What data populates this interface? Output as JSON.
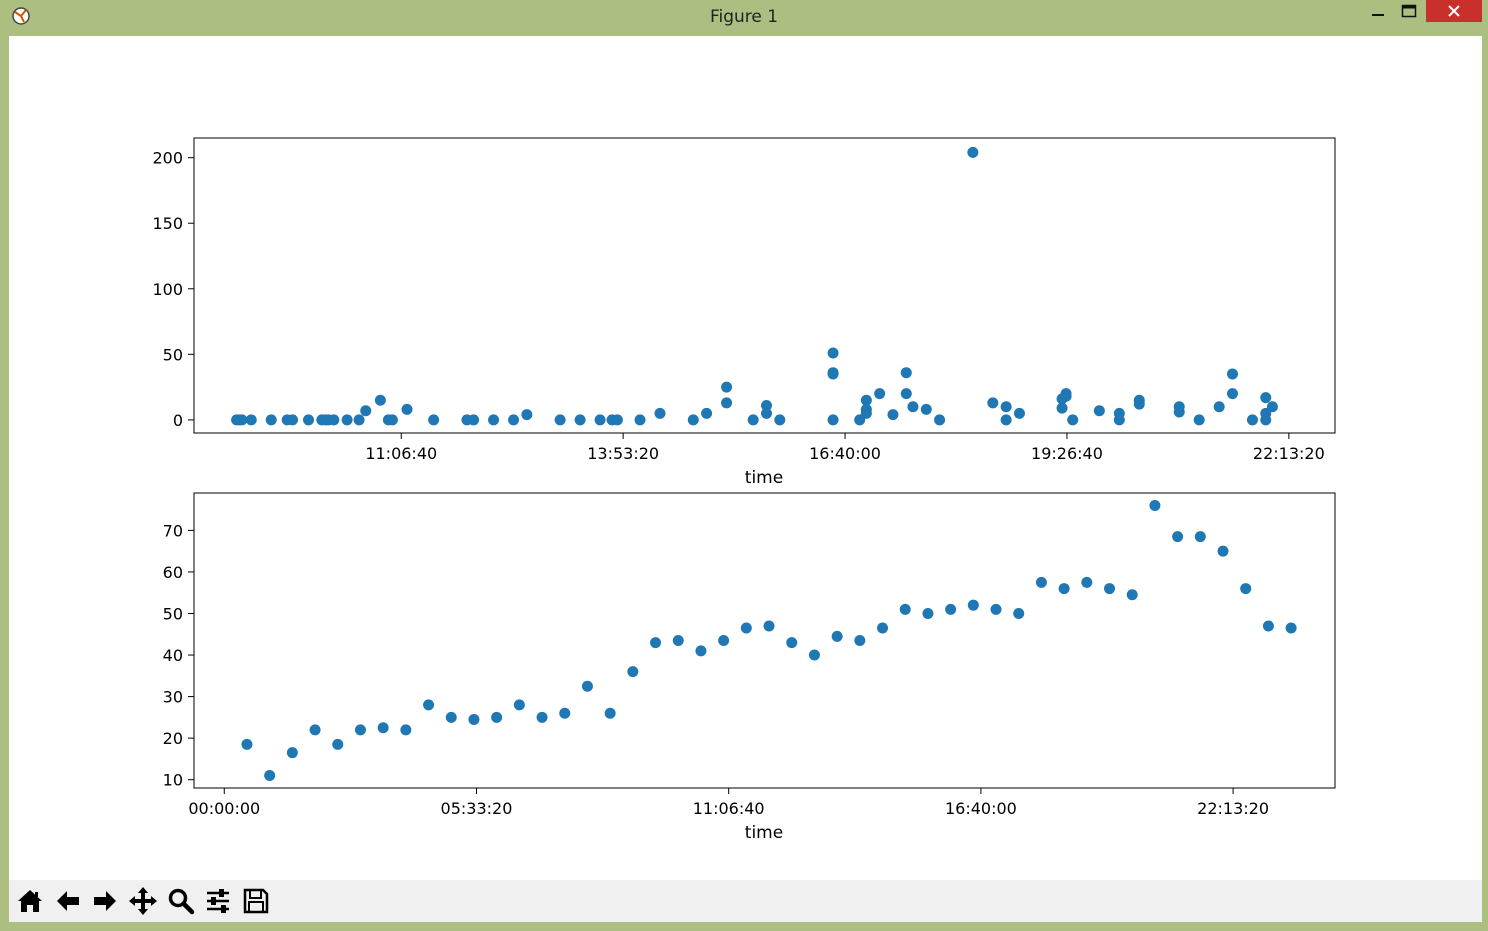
{
  "window": {
    "title": "Figure 1"
  },
  "toolbar": {
    "buttons": [
      {
        "name": "home-button",
        "icon": "home-icon"
      },
      {
        "name": "back-button",
        "icon": "arrow-left-icon"
      },
      {
        "name": "forward-button",
        "icon": "arrow-right-icon"
      },
      {
        "name": "pan-button",
        "icon": "move-icon"
      },
      {
        "name": "zoom-button",
        "icon": "magnifier-icon"
      },
      {
        "name": "subplots-button",
        "icon": "sliders-icon"
      },
      {
        "name": "save-button",
        "icon": "floppy-disk-icon"
      }
    ]
  },
  "colors": {
    "marker": "#1f77b4",
    "close_button": "#c9302c",
    "window_frame": "#adbf80"
  },
  "chart_data": [
    {
      "type": "scatter",
      "xlabel": "time",
      "ylabel": "",
      "xtick_labels": [
        "11:06:40",
        "13:53:20",
        "16:40:00",
        "19:26:40",
        "22:13:20"
      ],
      "ytick_labels": [
        "0",
        "50",
        "100",
        "150",
        "200"
      ],
      "ylim": [
        -10,
        215
      ],
      "xlim": [
        "08:31",
        "22:48"
      ],
      "grid": false,
      "points": [
        {
          "x": "09:03",
          "y": 0
        },
        {
          "x": "09:05",
          "y": 0
        },
        {
          "x": "09:07",
          "y": 0
        },
        {
          "x": "09:14",
          "y": 0
        },
        {
          "x": "09:29",
          "y": 0
        },
        {
          "x": "09:41",
          "y": 0
        },
        {
          "x": "09:45",
          "y": 0
        },
        {
          "x": "09:57",
          "y": 0
        },
        {
          "x": "10:07",
          "y": 0
        },
        {
          "x": "10:10",
          "y": 0
        },
        {
          "x": "10:12",
          "y": 0
        },
        {
          "x": "10:16",
          "y": 0
        },
        {
          "x": "10:26",
          "y": 0
        },
        {
          "x": "10:35",
          "y": 0
        },
        {
          "x": "10:40",
          "y": 7
        },
        {
          "x": "10:51",
          "y": 15
        },
        {
          "x": "10:57",
          "y": 0
        },
        {
          "x": "11:00",
          "y": 0
        },
        {
          "x": "11:11",
          "y": 8
        },
        {
          "x": "11:31",
          "y": 0
        },
        {
          "x": "11:56",
          "y": 0
        },
        {
          "x": "12:01",
          "y": 0
        },
        {
          "x": "12:16",
          "y": 0
        },
        {
          "x": "12:31",
          "y": 0
        },
        {
          "x": "12:41",
          "y": 4
        },
        {
          "x": "13:06",
          "y": 0
        },
        {
          "x": "13:21",
          "y": 0
        },
        {
          "x": "13:36",
          "y": 0
        },
        {
          "x": "13:45",
          "y": 0
        },
        {
          "x": "13:49",
          "y": 0
        },
        {
          "x": "14:06",
          "y": 0
        },
        {
          "x": "14:21",
          "y": 5
        },
        {
          "x": "14:46",
          "y": 0
        },
        {
          "x": "14:56",
          "y": 5
        },
        {
          "x": "15:11",
          "y": 25
        },
        {
          "x": "15:11",
          "y": 13
        },
        {
          "x": "15:31",
          "y": 0
        },
        {
          "x": "15:41",
          "y": 5
        },
        {
          "x": "15:41",
          "y": 11
        },
        {
          "x": "15:51",
          "y": 0
        },
        {
          "x": "16:31",
          "y": 51
        },
        {
          "x": "16:31",
          "y": 36
        },
        {
          "x": "16:31",
          "y": 35
        },
        {
          "x": "16:31",
          "y": 0
        },
        {
          "x": "16:51",
          "y": 0
        },
        {
          "x": "16:56",
          "y": 15
        },
        {
          "x": "16:56",
          "y": 8
        },
        {
          "x": "16:56",
          "y": 5
        },
        {
          "x": "17:06",
          "y": 20
        },
        {
          "x": "17:16",
          "y": 4
        },
        {
          "x": "17:26",
          "y": 36
        },
        {
          "x": "17:26",
          "y": 20
        },
        {
          "x": "17:31",
          "y": 10
        },
        {
          "x": "17:41",
          "y": 8
        },
        {
          "x": "17:51",
          "y": 0
        },
        {
          "x": "18:16",
          "y": 204
        },
        {
          "x": "18:31",
          "y": 13
        },
        {
          "x": "18:41",
          "y": 10
        },
        {
          "x": "18:41",
          "y": 0
        },
        {
          "x": "18:51",
          "y": 5
        },
        {
          "x": "19:23",
          "y": 16
        },
        {
          "x": "19:23",
          "y": 9
        },
        {
          "x": "19:26",
          "y": 20
        },
        {
          "x": "19:26",
          "y": 18
        },
        {
          "x": "19:31",
          "y": 0
        },
        {
          "x": "19:51",
          "y": 7
        },
        {
          "x": "20:06",
          "y": 5
        },
        {
          "x": "20:06",
          "y": 0
        },
        {
          "x": "20:21",
          "y": 15
        },
        {
          "x": "20:21",
          "y": 12
        },
        {
          "x": "20:51",
          "y": 10
        },
        {
          "x": "20:51",
          "y": 6
        },
        {
          "x": "21:06",
          "y": 0
        },
        {
          "x": "21:21",
          "y": 10
        },
        {
          "x": "21:31",
          "y": 35
        },
        {
          "x": "21:31",
          "y": 20
        },
        {
          "x": "21:46",
          "y": 0
        },
        {
          "x": "21:56",
          "y": 17
        },
        {
          "x": "21:56",
          "y": 5
        },
        {
          "x": "21:56",
          "y": 0
        },
        {
          "x": "22:01",
          "y": 10
        }
      ]
    },
    {
      "type": "scatter",
      "xlabel": "time",
      "ylabel": "",
      "xtick_labels": [
        "00:00:00",
        "05:33:20",
        "11:06:40",
        "16:40:00",
        "22:13:20"
      ],
      "ytick_labels": [
        "10",
        "20",
        "30",
        "40",
        "50",
        "60",
        "70"
      ],
      "ylim": [
        8,
        79
      ],
      "xlim": [
        "-00:40",
        "24:28"
      ],
      "grid": false,
      "points": [
        {
          "x": "00:30",
          "y": 18.5
        },
        {
          "x": "01:00",
          "y": 11
        },
        {
          "x": "01:30",
          "y": 16.5
        },
        {
          "x": "02:00",
          "y": 22
        },
        {
          "x": "02:30",
          "y": 18.5
        },
        {
          "x": "03:00",
          "y": 22
        },
        {
          "x": "03:30",
          "y": 22.5
        },
        {
          "x": "04:00",
          "y": 22
        },
        {
          "x": "04:30",
          "y": 28
        },
        {
          "x": "05:00",
          "y": 25
        },
        {
          "x": "05:30",
          "y": 24.5
        },
        {
          "x": "06:00",
          "y": 25
        },
        {
          "x": "06:30",
          "y": 28
        },
        {
          "x": "07:00",
          "y": 25
        },
        {
          "x": "07:30",
          "y": 26
        },
        {
          "x": "08:00",
          "y": 32.5
        },
        {
          "x": "08:30",
          "y": 26
        },
        {
          "x": "09:00",
          "y": 36
        },
        {
          "x": "09:30",
          "y": 43
        },
        {
          "x": "10:00",
          "y": 43.5
        },
        {
          "x": "10:30",
          "y": 41
        },
        {
          "x": "11:00",
          "y": 43.5
        },
        {
          "x": "11:30",
          "y": 46.5
        },
        {
          "x": "12:00",
          "y": 47
        },
        {
          "x": "12:30",
          "y": 43
        },
        {
          "x": "13:00",
          "y": 40
        },
        {
          "x": "13:30",
          "y": 44.5
        },
        {
          "x": "14:00",
          "y": 43.5
        },
        {
          "x": "14:30",
          "y": 46.5
        },
        {
          "x": "15:00",
          "y": 51
        },
        {
          "x": "15:30",
          "y": 50
        },
        {
          "x": "16:00",
          "y": 51
        },
        {
          "x": "16:30",
          "y": 52
        },
        {
          "x": "17:00",
          "y": 51
        },
        {
          "x": "17:30",
          "y": 50
        },
        {
          "x": "18:00",
          "y": 57.5
        },
        {
          "x": "18:30",
          "y": 56
        },
        {
          "x": "19:00",
          "y": 57.5
        },
        {
          "x": "19:30",
          "y": 56
        },
        {
          "x": "20:00",
          "y": 54.5
        },
        {
          "x": "20:30",
          "y": 76
        },
        {
          "x": "21:00",
          "y": 68.5
        },
        {
          "x": "21:30",
          "y": 68.5
        },
        {
          "x": "22:00",
          "y": 65
        },
        {
          "x": "22:30",
          "y": 56
        },
        {
          "x": "23:00",
          "y": 47
        },
        {
          "x": "23:30",
          "y": 46.5
        }
      ]
    }
  ]
}
